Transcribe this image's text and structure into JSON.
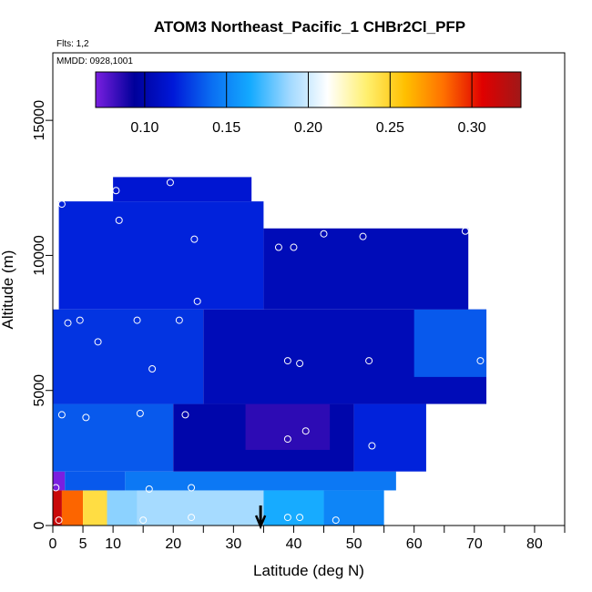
{
  "chart_data": {
    "type": "heatmap",
    "title": "ATOM3 Northeast_Pacific_1 CHBr2Cl_PFP",
    "flights_label": "Flts: 1,2",
    "dates_label": "MMDD: 0928,1001",
    "xlabel": "Latitude (deg N)",
    "ylabel": "Altitude (m)",
    "xlim": [
      0,
      85
    ],
    "ylim": [
      0,
      17500
    ],
    "x_ticks": [
      0,
      5,
      10,
      20,
      30,
      40,
      50,
      60,
      70,
      80
    ],
    "x_ticks_labeled": [
      "0",
      "5",
      "10",
      "20",
      "30",
      "40",
      "50",
      "60",
      "70",
      "80"
    ],
    "y_ticks": [
      0,
      5000,
      10000,
      15000
    ],
    "y_ticks_labeled": [
      "0",
      "5000",
      "10000",
      "15000"
    ],
    "colorbar": {
      "range": [
        0.07,
        0.33
      ],
      "ticks": [
        "0.10",
        "0.15",
        "0.20",
        "0.25",
        "0.30"
      ],
      "tick_values": [
        0.1,
        0.15,
        0.2,
        0.25,
        0.3
      ],
      "colors": [
        "#7a1fe0",
        "#00009a",
        "#0018d8",
        "#0a6ef2",
        "#14aaff",
        "#9fd8ff",
        "#ffffff",
        "#fff070",
        "#ffc000",
        "#ff7000",
        "#e00000",
        "#a01818"
      ]
    },
    "flight_marker_latitude": 34.5,
    "region_blocks": [
      {
        "lat": [
          0,
          1.5
        ],
        "alt": [
          0,
          1300
        ],
        "value": 0.315
      },
      {
        "lat": [
          1.5,
          5
        ],
        "alt": [
          0,
          1300
        ],
        "value": 0.285
      },
      {
        "lat": [
          5,
          9
        ],
        "alt": [
          0,
          1300
        ],
        "value": 0.245
      },
      {
        "lat": [
          9,
          14
        ],
        "alt": [
          0,
          1300
        ],
        "value": 0.185
      },
      {
        "lat": [
          14,
          35
        ],
        "alt": [
          0,
          1300
        ],
        "value": 0.19
      },
      {
        "lat": [
          35,
          45
        ],
        "alt": [
          0,
          1300
        ],
        "value": 0.165
      },
      {
        "lat": [
          45,
          55
        ],
        "alt": [
          0,
          1300
        ],
        "value": 0.15
      },
      {
        "lat": [
          0,
          2
        ],
        "alt": [
          1300,
          2000
        ],
        "value": 0.07
      },
      {
        "lat": [
          2,
          12
        ],
        "alt": [
          1300,
          2000
        ],
        "value": 0.135
      },
      {
        "lat": [
          12,
          57
        ],
        "alt": [
          1300,
          2000
        ],
        "value": 0.145
      },
      {
        "lat": [
          0,
          20
        ],
        "alt": [
          2000,
          4500
        ],
        "value": 0.135
      },
      {
        "lat": [
          20,
          50
        ],
        "alt": [
          2000,
          4500
        ],
        "value": 0.1
      },
      {
        "lat": [
          50,
          62
        ],
        "alt": [
          2000,
          4500
        ],
        "value": 0.12
      },
      {
        "lat": [
          32,
          46
        ],
        "alt": [
          2800,
          5500
        ],
        "value": 0.085
      },
      {
        "lat": [
          0,
          25
        ],
        "alt": [
          4500,
          8000
        ],
        "value": 0.125
      },
      {
        "lat": [
          25,
          72
        ],
        "alt": [
          4500,
          8000
        ],
        "value": 0.105
      },
      {
        "lat": [
          60,
          72
        ],
        "alt": [
          5500,
          8000
        ],
        "value": 0.135
      },
      {
        "lat": [
          1,
          35
        ],
        "alt": [
          8000,
          12000
        ],
        "value": 0.12
      },
      {
        "lat": [
          35,
          69
        ],
        "alt": [
          8000,
          11000
        ],
        "value": 0.105
      },
      {
        "lat": [
          10,
          33
        ],
        "alt": [
          12000,
          12900
        ],
        "value": 0.115
      }
    ],
    "observations": [
      {
        "lat": 1,
        "alt": 200
      },
      {
        "lat": 15,
        "alt": 200
      },
      {
        "lat": 23,
        "alt": 300
      },
      {
        "lat": 39,
        "alt": 300
      },
      {
        "lat": 41,
        "alt": 300
      },
      {
        "lat": 47,
        "alt": 200
      },
      {
        "lat": 0.5,
        "alt": 1400
      },
      {
        "lat": 16,
        "alt": 1350
      },
      {
        "lat": 23,
        "alt": 1400
      },
      {
        "lat": 1.5,
        "alt": 4100
      },
      {
        "lat": 5.5,
        "alt": 4000
      },
      {
        "lat": 14.5,
        "alt": 4150
      },
      {
        "lat": 22,
        "alt": 4100
      },
      {
        "lat": 39,
        "alt": 3200
      },
      {
        "lat": 42,
        "alt": 3500
      },
      {
        "lat": 53,
        "alt": 2950
      },
      {
        "lat": 16.5,
        "alt": 5800
      },
      {
        "lat": 39,
        "alt": 6100
      },
      {
        "lat": 41,
        "alt": 6000
      },
      {
        "lat": 52.5,
        "alt": 6100
      },
      {
        "lat": 71,
        "alt": 6100
      },
      {
        "lat": 2.5,
        "alt": 7500
      },
      {
        "lat": 4.5,
        "alt": 7600
      },
      {
        "lat": 7.5,
        "alt": 6800
      },
      {
        "lat": 14,
        "alt": 7600
      },
      {
        "lat": 21,
        "alt": 7600
      },
      {
        "lat": 24,
        "alt": 8300
      },
      {
        "lat": 23.5,
        "alt": 10600
      },
      {
        "lat": 37.5,
        "alt": 10300
      },
      {
        "lat": 40,
        "alt": 10300
      },
      {
        "lat": 45,
        "alt": 10800
      },
      {
        "lat": 51.5,
        "alt": 10700
      },
      {
        "lat": 59,
        "alt": 11200
      },
      {
        "lat": 68.5,
        "alt": 10900
      },
      {
        "lat": 1.5,
        "alt": 11900
      },
      {
        "lat": 10.5,
        "alt": 12400
      },
      {
        "lat": 11,
        "alt": 11300
      },
      {
        "lat": 19.5,
        "alt": 12700
      }
    ]
  }
}
